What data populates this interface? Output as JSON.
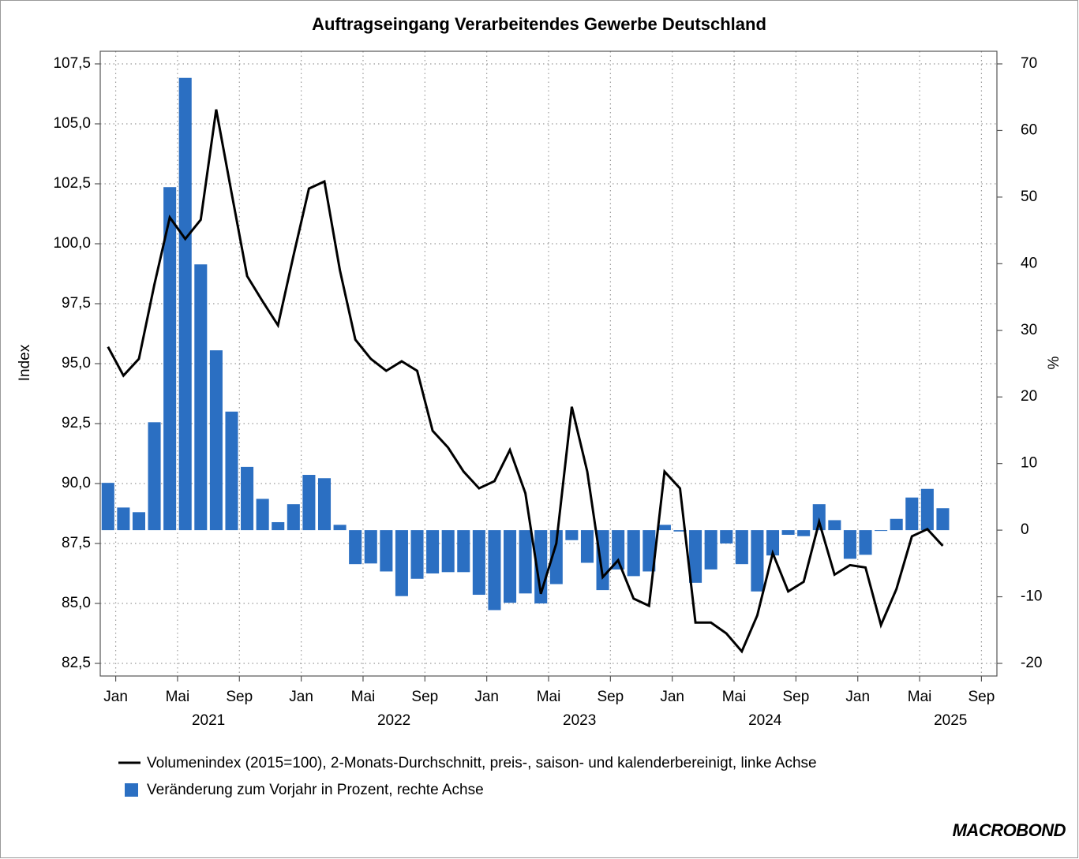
{
  "chart_data": {
    "type": "bar_line",
    "title": "Auftragseingang Verarbeitendes Gewerbe Deutschland",
    "ylabel": "Index",
    "y2label": "%",
    "categories": [
      "Jan",
      null,
      null,
      null,
      "Mai",
      null,
      null,
      null,
      "Sep",
      null,
      null,
      null,
      "Jan",
      null,
      null,
      null,
      "Mai",
      null,
      null,
      null,
      "Sep",
      null,
      null,
      null,
      "Jan",
      null,
      null,
      null,
      "Mai",
      null,
      null,
      null,
      "Sep",
      null,
      null,
      null,
      "Jan",
      null,
      null,
      null,
      "Mai",
      null,
      null,
      null,
      "Sep",
      null,
      null,
      null,
      "Jan",
      null,
      null,
      null,
      "Mai",
      null,
      null,
      null,
      "Sep",
      null
    ],
    "x_groups": [
      {
        "label": "2021",
        "start": 0
      },
      {
        "label": "2022",
        "start": 12
      },
      {
        "label": "2023",
        "start": 24
      },
      {
        "label": "2024",
        "start": 36
      },
      {
        "label": "2025",
        "start": 48
      }
    ],
    "series": [
      {
        "name": "Volumenindex (2015=100), 2-Monats-Durchschnitt, preis-, saison- und kalenderbereinigt, linke Achse",
        "type": "line",
        "color": "#000000",
        "axis": "y",
        "values": [
          95.7,
          94.5,
          95.2,
          98.3,
          101.1,
          100.2,
          101.0,
          105.6,
          102.1,
          98.65,
          97.6,
          96.6,
          99.5,
          102.3,
          102.6,
          98.9,
          96.0,
          95.2,
          94.7,
          95.1,
          94.7,
          92.2,
          91.5,
          90.5,
          89.8,
          90.1,
          91.4,
          89.6,
          85.4,
          87.5,
          93.2,
          90.5,
          86.1,
          86.8,
          85.2,
          84.9,
          90.5,
          89.8,
          84.2,
          84.2,
          83.75,
          83.0,
          84.5,
          87.1,
          85.5,
          85.9,
          88.4,
          86.2,
          86.6,
          86.5,
          84.1,
          85.6,
          87.8,
          88.1,
          87.4,
          null,
          null,
          null
        ]
      },
      {
        "name": "Veränderung zum Vorjahr in Prozent, rechte Achse",
        "type": "bar",
        "color": "#2b6fc2",
        "axis": "y2",
        "values": [
          7.1,
          3.4,
          2.7,
          16.2,
          51.5,
          67.9,
          39.9,
          27.0,
          17.8,
          9.5,
          4.7,
          1.2,
          3.9,
          8.3,
          7.8,
          0.8,
          -5.1,
          -5.0,
          -6.2,
          -9.9,
          -7.3,
          -6.5,
          -6.3,
          -6.3,
          -9.7,
          -12.0,
          -10.9,
          -9.5,
          -11.0,
          -8.1,
          -1.5,
          -4.9,
          -9.0,
          -5.9,
          -6.9,
          -6.2,
          0.8,
          -0.2,
          -7.9,
          -5.9,
          -2.0,
          -5.1,
          -9.2,
          -3.8,
          -0.7,
          -0.9,
          3.9,
          1.5,
          -4.3,
          -3.7,
          -0.1,
          1.7,
          4.9,
          6.2,
          3.3,
          null,
          null,
          null
        ]
      }
    ],
    "ylim": [
      82.5,
      107.5
    ],
    "yticks": [
      {
        "value": 82.5,
        "label": "82,5"
      },
      {
        "value": 85,
        "label": "85,0"
      },
      {
        "value": 87.5,
        "label": "87,5"
      },
      {
        "value": 90,
        "label": "90,0"
      },
      {
        "value": 92.5,
        "label": "92,5"
      },
      {
        "value": 95,
        "label": "95,0"
      },
      {
        "value": 97.5,
        "label": "97,5"
      },
      {
        "value": 100,
        "label": "100,0"
      },
      {
        "value": 102.5,
        "label": "102,5"
      },
      {
        "value": 105,
        "label": "105,0"
      },
      {
        "value": 107.5,
        "label": "107,5"
      }
    ],
    "y2lim": [
      -20,
      70
    ],
    "y2ticks": [
      -20,
      -10,
      0,
      10,
      20,
      30,
      40,
      50,
      60,
      70
    ],
    "grid": true,
    "source": "MACROBOND"
  }
}
